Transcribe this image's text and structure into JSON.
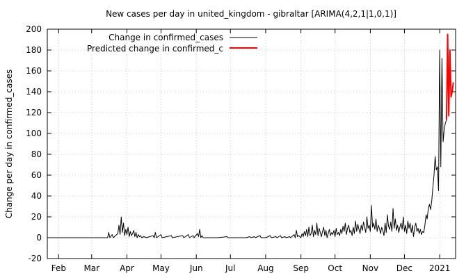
{
  "chart_data": {
    "type": "line",
    "title": "New cases per day in united_kingdom - gibraltar [ARIMA(4,2,1|1,0,1)]",
    "xlabel": "",
    "ylabel": "Change per day in confirmed_cases",
    "ylim": [
      -20,
      200
    ],
    "yticks": [
      -20,
      0,
      20,
      40,
      60,
      80,
      100,
      120,
      140,
      160,
      180,
      200
    ],
    "xlim": [
      "2020-01-22",
      "2021-01-15"
    ],
    "xticks": [
      {
        "date": "2020-02-01",
        "label": "Feb"
      },
      {
        "date": "2020-03-01",
        "label": "Mar"
      },
      {
        "date": "2020-04-01",
        "label": "Apr"
      },
      {
        "date": "2020-05-01",
        "label": "May"
      },
      {
        "date": "2020-06-01",
        "label": "Jun"
      },
      {
        "date": "2020-07-01",
        "label": "Jul"
      },
      {
        "date": "2020-08-01",
        "label": "Aug"
      },
      {
        "date": "2020-09-01",
        "label": "Sep"
      },
      {
        "date": "2020-10-01",
        "label": "Oct"
      },
      {
        "date": "2020-11-01",
        "label": "Nov"
      },
      {
        "date": "2020-12-01",
        "label": "Dec"
      },
      {
        "date": "2021-01-01",
        "label": "2021"
      }
    ],
    "grid": true,
    "legend_position": "top-left",
    "series": [
      {
        "name": "Change in confirmed_cases",
        "color": "#000000",
        "points": [
          [
            "2020-01-22",
            0
          ],
          [
            "2020-03-01",
            0
          ],
          [
            "2020-03-15",
            0
          ],
          [
            "2020-03-16",
            5
          ],
          [
            "2020-03-17",
            0
          ],
          [
            "2020-03-19",
            3
          ],
          [
            "2020-03-20",
            0
          ],
          [
            "2020-03-24",
            4
          ],
          [
            "2020-03-25",
            12
          ],
          [
            "2020-03-26",
            3
          ],
          [
            "2020-03-27",
            20
          ],
          [
            "2020-03-28",
            5
          ],
          [
            "2020-03-29",
            14
          ],
          [
            "2020-03-30",
            2
          ],
          [
            "2020-03-31",
            8
          ],
          [
            "2020-04-01",
            3
          ],
          [
            "2020-04-02",
            10
          ],
          [
            "2020-04-03",
            1
          ],
          [
            "2020-04-04",
            6
          ],
          [
            "2020-04-05",
            2
          ],
          [
            "2020-04-06",
            4
          ],
          [
            "2020-04-07",
            7
          ],
          [
            "2020-04-08",
            1
          ],
          [
            "2020-04-09",
            5
          ],
          [
            "2020-04-10",
            0
          ],
          [
            "2020-04-11",
            3
          ],
          [
            "2020-04-12",
            1
          ],
          [
            "2020-04-13",
            2
          ],
          [
            "2020-04-14",
            0
          ],
          [
            "2020-04-16",
            1
          ],
          [
            "2020-04-18",
            0
          ],
          [
            "2020-04-24",
            2
          ],
          [
            "2020-04-25",
            0
          ],
          [
            "2020-04-26",
            5
          ],
          [
            "2020-04-27",
            0
          ],
          [
            "2020-05-01",
            3
          ],
          [
            "2020-05-02",
            0
          ],
          [
            "2020-05-10",
            2
          ],
          [
            "2020-05-11",
            0
          ],
          [
            "2020-05-20",
            2
          ],
          [
            "2020-05-21",
            0
          ],
          [
            "2020-05-25",
            3
          ],
          [
            "2020-05-26",
            0
          ],
          [
            "2020-05-29",
            2
          ],
          [
            "2020-05-30",
            0
          ],
          [
            "2020-06-02",
            4
          ],
          [
            "2020-06-03",
            1
          ],
          [
            "2020-06-04",
            8
          ],
          [
            "2020-06-05",
            0
          ],
          [
            "2020-06-06",
            2
          ],
          [
            "2020-06-07",
            0
          ],
          [
            "2020-06-20",
            0
          ],
          [
            "2020-06-28",
            1
          ],
          [
            "2020-06-29",
            0
          ],
          [
            "2020-07-15",
            0
          ],
          [
            "2020-07-18",
            1
          ],
          [
            "2020-07-19",
            0
          ],
          [
            "2020-07-22",
            1
          ],
          [
            "2020-07-23",
            0
          ],
          [
            "2020-07-27",
            2
          ],
          [
            "2020-07-28",
            0
          ],
          [
            "2020-08-01",
            0
          ],
          [
            "2020-08-05",
            2
          ],
          [
            "2020-08-06",
            0
          ],
          [
            "2020-08-10",
            1
          ],
          [
            "2020-08-11",
            0
          ],
          [
            "2020-08-14",
            2
          ],
          [
            "2020-08-15",
            0
          ],
          [
            "2020-08-18",
            1
          ],
          [
            "2020-08-19",
            0
          ],
          [
            "2020-08-22",
            1
          ],
          [
            "2020-08-23",
            0
          ],
          [
            "2020-08-26",
            3
          ],
          [
            "2020-08-27",
            0
          ],
          [
            "2020-08-28",
            7
          ],
          [
            "2020-08-29",
            1
          ],
          [
            "2020-08-30",
            2
          ],
          [
            "2020-09-01",
            0
          ],
          [
            "2020-09-02",
            4
          ],
          [
            "2020-09-03",
            1
          ],
          [
            "2020-09-04",
            6
          ],
          [
            "2020-09-05",
            2
          ],
          [
            "2020-09-06",
            8
          ],
          [
            "2020-09-07",
            1
          ],
          [
            "2020-09-08",
            10
          ],
          [
            "2020-09-09",
            2
          ],
          [
            "2020-09-10",
            4
          ],
          [
            "2020-09-11",
            12
          ],
          [
            "2020-09-12",
            1
          ],
          [
            "2020-09-13",
            7
          ],
          [
            "2020-09-14",
            3
          ],
          [
            "2020-09-15",
            14
          ],
          [
            "2020-09-16",
            2
          ],
          [
            "2020-09-17",
            9
          ],
          [
            "2020-09-18",
            5
          ],
          [
            "2020-09-19",
            1
          ],
          [
            "2020-09-20",
            6
          ],
          [
            "2020-09-21",
            10
          ],
          [
            "2020-09-22",
            2
          ],
          [
            "2020-09-23",
            7
          ],
          [
            "2020-09-24",
            0
          ],
          [
            "2020-09-25",
            4
          ],
          [
            "2020-09-26",
            8
          ],
          [
            "2020-09-27",
            2
          ],
          [
            "2020-09-28",
            5
          ],
          [
            "2020-09-29",
            3
          ],
          [
            "2020-09-30",
            7
          ],
          [
            "2020-10-01",
            1
          ],
          [
            "2020-10-02",
            9
          ],
          [
            "2020-10-03",
            3
          ],
          [
            "2020-10-04",
            5
          ],
          [
            "2020-10-05",
            2
          ],
          [
            "2020-10-06",
            8
          ],
          [
            "2020-10-07",
            4
          ],
          [
            "2020-10-08",
            11
          ],
          [
            "2020-10-09",
            6
          ],
          [
            "2020-10-10",
            14
          ],
          [
            "2020-10-11",
            3
          ],
          [
            "2020-10-12",
            9
          ],
          [
            "2020-10-13",
            12
          ],
          [
            "2020-10-14",
            5
          ],
          [
            "2020-10-15",
            7
          ],
          [
            "2020-10-16",
            2
          ],
          [
            "2020-10-17",
            10
          ],
          [
            "2020-10-18",
            4
          ],
          [
            "2020-10-19",
            16
          ],
          [
            "2020-10-20",
            6
          ],
          [
            "2020-10-21",
            13
          ],
          [
            "2020-10-22",
            8
          ],
          [
            "2020-10-23",
            4
          ],
          [
            "2020-10-24",
            12
          ],
          [
            "2020-10-25",
            7
          ],
          [
            "2020-10-26",
            15
          ],
          [
            "2020-10-27",
            10
          ],
          [
            "2020-10-28",
            5
          ],
          [
            "2020-10-29",
            20
          ],
          [
            "2020-10-30",
            9
          ],
          [
            "2020-10-31",
            12
          ],
          [
            "2020-11-01",
            6
          ],
          [
            "2020-11-02",
            31
          ],
          [
            "2020-11-03",
            10
          ],
          [
            "2020-11-04",
            14
          ],
          [
            "2020-11-05",
            8
          ],
          [
            "2020-11-06",
            18
          ],
          [
            "2020-11-07",
            6
          ],
          [
            "2020-11-08",
            12
          ],
          [
            "2020-11-09",
            9
          ],
          [
            "2020-11-10",
            4
          ],
          [
            "2020-11-11",
            10
          ],
          [
            "2020-11-12",
            7
          ],
          [
            "2020-11-13",
            2
          ],
          [
            "2020-11-14",
            14
          ],
          [
            "2020-11-15",
            5
          ],
          [
            "2020-11-16",
            22
          ],
          [
            "2020-11-17",
            11
          ],
          [
            "2020-11-18",
            8
          ],
          [
            "2020-11-19",
            15
          ],
          [
            "2020-11-20",
            6
          ],
          [
            "2020-11-21",
            28
          ],
          [
            "2020-11-22",
            9
          ],
          [
            "2020-11-23",
            18
          ],
          [
            "2020-11-24",
            7
          ],
          [
            "2020-11-25",
            12
          ],
          [
            "2020-11-26",
            5
          ],
          [
            "2020-11-27",
            10
          ],
          [
            "2020-11-28",
            14
          ],
          [
            "2020-11-29",
            8
          ],
          [
            "2020-11-30",
            20
          ],
          [
            "2020-12-01",
            6
          ],
          [
            "2020-12-02",
            12
          ],
          [
            "2020-12-03",
            4
          ],
          [
            "2020-12-04",
            16
          ],
          [
            "2020-12-05",
            9
          ],
          [
            "2020-12-06",
            14
          ],
          [
            "2020-12-07",
            5
          ],
          [
            "2020-12-08",
            12
          ],
          [
            "2020-12-09",
            1
          ],
          [
            "2020-12-10",
            10
          ],
          [
            "2020-12-11",
            14
          ],
          [
            "2020-12-12",
            6
          ],
          [
            "2020-12-13",
            9
          ],
          [
            "2020-12-14",
            4
          ],
          [
            "2020-12-15",
            8
          ],
          [
            "2020-12-16",
            3
          ],
          [
            "2020-12-17",
            6
          ],
          [
            "2020-12-18",
            5
          ],
          [
            "2020-12-19",
            12
          ],
          [
            "2020-12-20",
            22
          ],
          [
            "2020-12-21",
            18
          ],
          [
            "2020-12-22",
            28
          ],
          [
            "2020-12-23",
            32
          ],
          [
            "2020-12-24",
            27
          ],
          [
            "2020-12-25",
            35
          ],
          [
            "2020-12-26",
            48
          ],
          [
            "2020-12-27",
            60
          ],
          [
            "2020-12-28",
            78
          ],
          [
            "2020-12-29",
            65
          ],
          [
            "2020-12-30",
            68
          ],
          [
            "2020-12-31",
            45
          ],
          [
            "2021-01-01",
            180
          ],
          [
            "2021-01-02",
            68
          ],
          [
            "2021-01-03",
            172
          ],
          [
            "2021-01-04",
            92
          ],
          [
            "2021-01-05",
            104
          ],
          [
            "2021-01-06",
            110
          ],
          [
            "2021-01-07",
            113
          ]
        ]
      },
      {
        "name": "Predicted change in confirmed_c",
        "color": "#ff0000",
        "points": [
          [
            "2021-01-07",
            113
          ],
          [
            "2021-01-08",
            195
          ],
          [
            "2021-01-09",
            117
          ],
          [
            "2021-01-10",
            180
          ],
          [
            "2021-01-11",
            135
          ],
          [
            "2021-01-12",
            140
          ],
          [
            "2021-01-13",
            149
          ]
        ]
      }
    ]
  }
}
